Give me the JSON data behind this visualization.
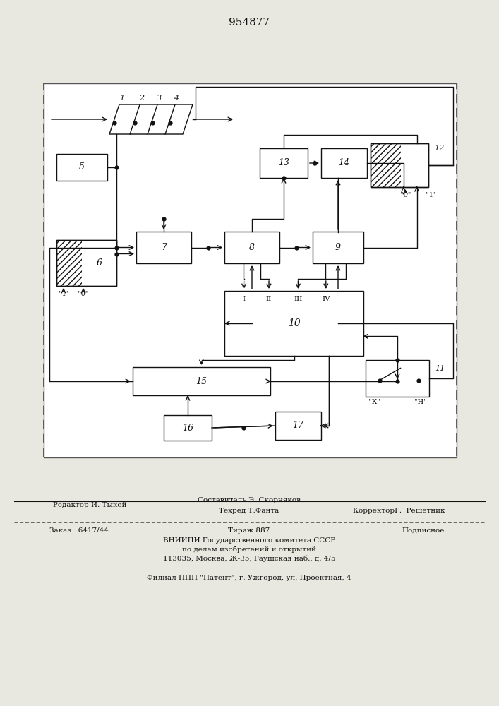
{
  "title": "954877",
  "bg_color": "#e8e8e0",
  "diagram_bg": "#ffffff",
  "lc": "#111111",
  "footer": {
    "line1_left": "Редактор И. Тыкей",
    "line1_center": "Составитель Э. Скорняков",
    "line2_center": "Техред Т.Фанта",
    "line2_right": "КорректорГ.  Решетник",
    "line3_left": "Заказ   6417/44",
    "line3_center": "Тираж 887",
    "line3_right": "Подписное",
    "line4_center": "ВНИИПИ Государственного комитета СССР",
    "line5_center": "по делам изобретений и открытий",
    "line6_center": "113035, Москва, Ж-35, Раушская наб., д. 4/5",
    "line7_center": "Филиал ППП \"Патент\", г. Ужгород, ул. Проектная, 4"
  }
}
